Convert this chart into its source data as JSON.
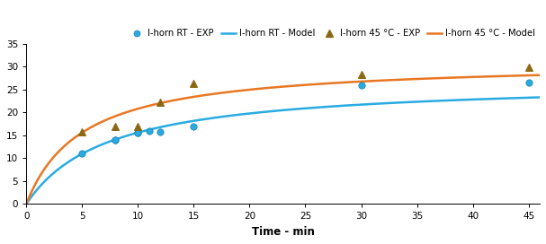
{
  "rt_exp_x": [
    5,
    8,
    8,
    10,
    10,
    11,
    12,
    15,
    30,
    45
  ],
  "rt_exp_y": [
    11,
    14,
    14,
    15.5,
    15.5,
    16,
    15.8,
    17,
    26,
    26.5
  ],
  "temp45_exp_x": [
    5,
    8,
    10,
    12,
    15,
    30,
    45
  ],
  "temp45_exp_y": [
    15.8,
    17,
    17,
    22.2,
    26.3,
    28.3,
    29.8
  ],
  "rt_model_color": "#29ABE2",
  "temp45_model_color": "#E87722",
  "rt_exp_color": "#29ABE2",
  "temp45_exp_color": "#8B6914",
  "peleg_rt": {
    "K1": 0.27,
    "K2": 0.037
  },
  "peleg_45": {
    "K1": 0.16,
    "K2": 0.032
  },
  "xlabel": "Time - min",
  "xlim": [
    0,
    46
  ],
  "ylim": [
    0,
    35
  ],
  "xticks": [
    0,
    5,
    10,
    15,
    20,
    25,
    30,
    35,
    40,
    45
  ],
  "yticks": [
    0,
    5,
    10,
    15,
    20,
    25,
    30,
    35
  ],
  "legend_labels": [
    "I-horn RT - EXP",
    "I-horn RT - Model",
    "I-horn 45 °C - EXP",
    "I-horn 45 °C - Model"
  ]
}
